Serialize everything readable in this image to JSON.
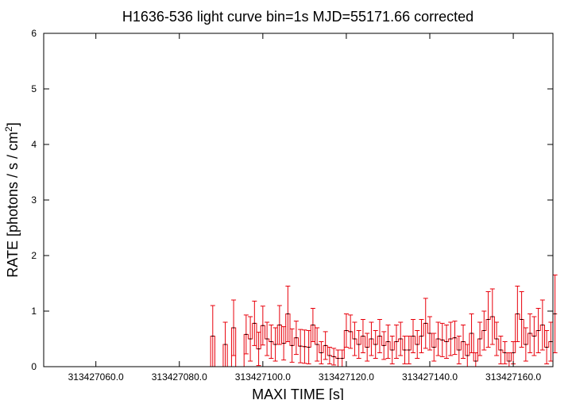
{
  "chart_data": {
    "type": "line",
    "title": "H1636-536 light curve bin=1s MJD=55171.66 corrected",
    "xlabel": "MAXI TIME [s]",
    "ylabel": "RATE [photons / s / cm",
    "ylabel_sup": "2",
    "ylabel_end": "]",
    "xlim": [
      313427047.5,
      313427169.5
    ],
    "ylim": [
      0,
      6
    ],
    "yticks": [
      0,
      1,
      2,
      3,
      4,
      5,
      6
    ],
    "ytick_labels": [
      "0",
      "1",
      "2",
      "3",
      "4",
      "5",
      "6"
    ],
    "xticks": [
      313427060,
      313427080,
      313427100,
      313427120,
      313427140,
      313427160
    ],
    "xtick_labels": [
      "313427060.0",
      "313427080.0",
      "313427100.0",
      "313427120.0",
      "313427140.0",
      "313427160.0"
    ],
    "grid": false,
    "series": [
      {
        "step": "hist",
        "bin": 1,
        "color": "#e8000b",
        "x_start": 313427048,
        "x_step": 1,
        "values": [
          0,
          0,
          0,
          0,
          0,
          0,
          0,
          0,
          0,
          0,
          0,
          0,
          0,
          0,
          0,
          0,
          0,
          0,
          0,
          0,
          0,
          0,
          0,
          0,
          0,
          0,
          0,
          0,
          0,
          0,
          0,
          0,
          0,
          0,
          0,
          0,
          0,
          0,
          0,
          0,
          0.55,
          0,
          0,
          0.4,
          0,
          0.7,
          0,
          0,
          0.58,
          0.5,
          0.78,
          0.32,
          0.74,
          0.5,
          0.45,
          0.4,
          0.75,
          0.42,
          0.95,
          0.38,
          0.52,
          0.37,
          0.36,
          0.35,
          0.75,
          0.4,
          0.25,
          0.38,
          0.2,
          0.18,
          0.15,
          0.15,
          0.65,
          0.63,
          0.5,
          0.4,
          0.55,
          0.35,
          0.5,
          0.4,
          0.55,
          0.38,
          0.45,
          0.3,
          0.45,
          0.5,
          0.3,
          0.3,
          0.55,
          0.4,
          0.55,
          0.78,
          0.6,
          0.35,
          0.5,
          0.48,
          0.45,
          0.5,
          0.52,
          0.3,
          0.45,
          0.2,
          0.6,
          0.1,
          0.5,
          0.65,
          0.85,
          0.9,
          0.5,
          0.3,
          0.25,
          0.1,
          0.25,
          0.95,
          0.85,
          0.4,
          0.6,
          0.55,
          0.65,
          0.75,
          0.35,
          0.45,
          0.95
        ],
        "errors": [
          0,
          0,
          0,
          0,
          0,
          0,
          0,
          0,
          0,
          0,
          0,
          0,
          0,
          0,
          0,
          0,
          0,
          0,
          0,
          0,
          0,
          0,
          0,
          0,
          0,
          0,
          0,
          0,
          0,
          0,
          0,
          0,
          0,
          0,
          0,
          0,
          0,
          0,
          0,
          0,
          0.55,
          0,
          0,
          0.4,
          0,
          0.5,
          0,
          0,
          0.35,
          0.4,
          0.4,
          0.3,
          0.35,
          0.3,
          0.3,
          0.3,
          0.35,
          0.3,
          0.5,
          0.3,
          0.3,
          0.3,
          0.3,
          0.3,
          0.3,
          0.3,
          0.2,
          0.25,
          0.15,
          0.15,
          0.15,
          0.15,
          0.3,
          0.3,
          0.3,
          0.25,
          0.3,
          0.25,
          0.3,
          0.25,
          0.3,
          0.25,
          0.3,
          0.25,
          0.3,
          0.3,
          0.25,
          0.25,
          0.3,
          0.25,
          0.3,
          0.45,
          0.3,
          0.25,
          0.3,
          0.3,
          0.3,
          0.3,
          0.3,
          0.25,
          0.3,
          0.2,
          0.35,
          0.15,
          0.3,
          0.35,
          0.5,
          0.5,
          0.3,
          0.25,
          0.2,
          0.15,
          0.2,
          0.5,
          0.5,
          0.3,
          0.35,
          0.35,
          0.4,
          0.45,
          0.3,
          0.35,
          0.7
        ]
      }
    ]
  }
}
